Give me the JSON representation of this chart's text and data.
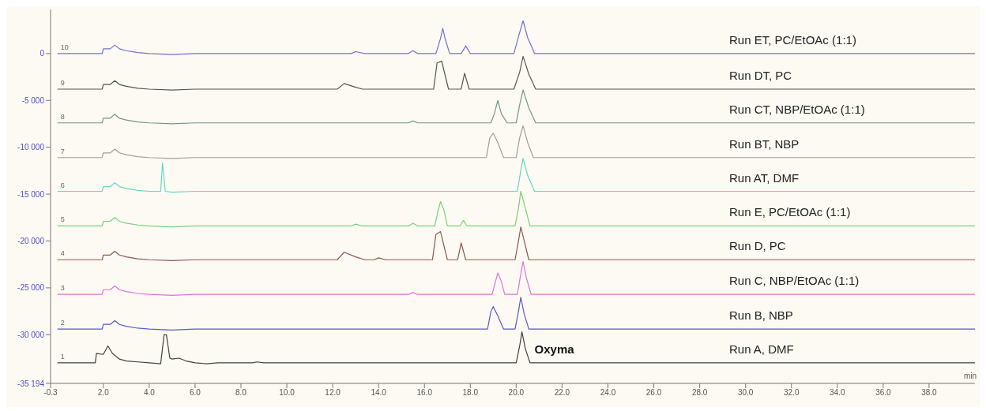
{
  "chart_data": {
    "type": "line",
    "xlabel": "min",
    "xlim": [
      -0.3,
      40
    ],
    "ylim": [
      -35194,
      4700
    ],
    "xticks": [
      -0.3,
      {
        "value": 2,
        "label": "2.0"
      },
      {
        "value": 4,
        "label": "4.0"
      },
      {
        "value": 6,
        "label": "6.0"
      },
      {
        "value": 8,
        "label": "8.0"
      },
      {
        "value": 10,
        "label": "10.0"
      },
      {
        "value": 12,
        "label": "12.0"
      },
      {
        "value": 14,
        "label": "14.0"
      },
      {
        "value": 16,
        "label": "16.0"
      },
      {
        "value": 18,
        "label": "18.0"
      },
      {
        "value": 20,
        "label": "20.0"
      },
      {
        "value": 22,
        "label": "22.0"
      },
      {
        "value": 24,
        "label": "24.0"
      },
      {
        "value": 26,
        "label": "26.0"
      },
      {
        "value": 28,
        "label": "28.0"
      },
      {
        "value": 30,
        "label": "30.0"
      },
      {
        "value": 32,
        "label": "32.0"
      },
      {
        "value": 34,
        "label": "34.0"
      },
      {
        "value": 36,
        "label": "36.0"
      },
      {
        "value": 38,
        "label": "38.0"
      }
    ],
    "yticks": [
      0,
      {
        "value": -5000,
        "label": "-5 000"
      },
      {
        "value": -10000,
        "label": "-10 000"
      },
      {
        "value": -15000,
        "label": "-15 000"
      },
      {
        "value": -20000,
        "label": "-20 000"
      },
      {
        "value": -25000,
        "label": "-25 000"
      },
      {
        "value": -30000,
        "label": "-30 000"
      },
      {
        "value": -35194,
        "label": "-35 194"
      }
    ],
    "marker": "none",
    "line_style": "solid",
    "series": [
      {
        "name": "Run ET, PC/EtOAc (1:1)",
        "color": "#7070d8",
        "x": [
          0,
          1.95,
          2.0,
          2.3,
          2.5,
          2.7,
          3.0,
          3.5,
          4.0,
          5.0,
          6.0,
          12.8,
          13.0,
          13.4,
          15.3,
          15.5,
          15.7,
          16.5,
          16.7,
          16.8,
          16.9,
          17.1,
          17.6,
          17.8,
          18.0,
          19.9,
          20.1,
          20.3,
          20.5,
          20.8,
          40
        ],
        "values": [
          0,
          0,
          500,
          500,
          900,
          500,
          300,
          100,
          0,
          -100,
          0,
          0,
          200,
          0,
          0,
          300,
          0,
          0,
          1600,
          2700,
          1600,
          0,
          0,
          800,
          0,
          0,
          1800,
          3500,
          1700,
          0,
          0
        ]
      },
      {
        "name": "Run DT, PC",
        "color": "#555555",
        "x": [
          0,
          1.95,
          2.0,
          2.3,
          2.5,
          2.7,
          3.0,
          3.5,
          4.0,
          5.0,
          6.0,
          12.2,
          12.5,
          13.0,
          13.3,
          16.4,
          16.55,
          16.75,
          17.05,
          17.6,
          17.75,
          17.95,
          19.9,
          20.15,
          20.3,
          20.55,
          20.85,
          40
        ],
        "values": [
          -3800,
          -3800,
          -3300,
          -3300,
          -2900,
          -3300,
          -3500,
          -3700,
          -3800,
          -3900,
          -3800,
          -3800,
          -3200,
          -3600,
          -3800,
          -3800,
          -1000,
          -800,
          -3800,
          -3800,
          -2100,
          -3800,
          -3800,
          -2000,
          -300,
          -2200,
          -3800,
          -3800
        ]
      },
      {
        "name": "Run CT, NBP/EtOAc (1:1)",
        "color": "#709888",
        "x": [
          0,
          1.95,
          2.0,
          2.3,
          2.5,
          2.7,
          3.0,
          3.5,
          4.0,
          5.0,
          6.0,
          15.3,
          15.5,
          15.7,
          18.9,
          19.05,
          19.2,
          19.35,
          19.6,
          20.0,
          20.15,
          20.3,
          20.55,
          20.85,
          40
        ],
        "values": [
          -7400,
          -7400,
          -6900,
          -6900,
          -6500,
          -6900,
          -7100,
          -7300,
          -7400,
          -7500,
          -7400,
          -7400,
          -7200,
          -7400,
          -7400,
          -6400,
          -5000,
          -6400,
          -7400,
          -7400,
          -5500,
          -3900,
          -5800,
          -7400,
          -7400
        ]
      },
      {
        "name": "Run BT, NBP",
        "color": "#a0a090",
        "x": [
          0,
          1.95,
          2.0,
          2.3,
          2.5,
          2.7,
          3.0,
          3.5,
          4.0,
          5.0,
          6.0,
          18.7,
          18.85,
          19.0,
          19.2,
          19.45,
          20.0,
          20.15,
          20.3,
          20.5,
          20.75,
          40
        ],
        "values": [
          -11100,
          -11100,
          -10600,
          -10600,
          -10200,
          -10600,
          -10800,
          -11000,
          -11100,
          -11200,
          -11100,
          -11100,
          -9000,
          -8500,
          -9500,
          -11100,
          -11100,
          -9000,
          -7700,
          -9500,
          -11100,
          -11100
        ]
      },
      {
        "name": "Run AT, DMF",
        "color": "#60d8c8",
        "x": [
          0,
          1.95,
          2.0,
          2.3,
          2.5,
          2.7,
          3.0,
          3.5,
          4.0,
          4.5,
          4.58,
          4.7,
          5.0,
          6.0,
          20.05,
          20.2,
          20.3,
          20.5,
          20.8,
          40
        ],
        "values": [
          -14700,
          -14700,
          -14200,
          -14200,
          -13800,
          -14200,
          -14400,
          -14600,
          -14700,
          -14700,
          -11700,
          -14700,
          -14800,
          -14700,
          -14700,
          -12500,
          -11200,
          -13000,
          -14700,
          -14700
        ]
      },
      {
        "name": "Run E, PC/EtOAc (1:1)",
        "color": "#78d078",
        "x": [
          0,
          1.95,
          2.0,
          2.3,
          2.5,
          2.7,
          3.0,
          3.5,
          4.0,
          5.0,
          6.0,
          12.8,
          13.0,
          13.3,
          15.3,
          15.5,
          15.7,
          16.45,
          16.6,
          16.7,
          16.85,
          17.0,
          17.55,
          17.7,
          17.85,
          19.95,
          20.1,
          20.2,
          20.4,
          20.6,
          40
        ],
        "values": [
          -18400,
          -18400,
          -17900,
          -17900,
          -17500,
          -17900,
          -18100,
          -18300,
          -18400,
          -18500,
          -18400,
          -18400,
          -18200,
          -18400,
          -18400,
          -18100,
          -18400,
          -18400,
          -16700,
          -15800,
          -16700,
          -18400,
          -18400,
          -17800,
          -18400,
          -18400,
          -16500,
          -14700,
          -16500,
          -18400,
          -18400
        ]
      },
      {
        "name": "Run D, PC",
        "color": "#8a5848",
        "x": [
          0,
          1.95,
          2.0,
          2.3,
          2.5,
          2.7,
          3.0,
          3.5,
          4.0,
          5.0,
          6.0,
          12.2,
          12.5,
          13.0,
          13.4,
          13.8,
          14.0,
          14.3,
          16.35,
          16.5,
          16.7,
          17.0,
          17.45,
          17.6,
          17.8,
          19.95,
          20.1,
          20.2,
          20.35,
          20.55,
          40
        ],
        "values": [
          -22000,
          -22000,
          -21500,
          -21500,
          -21100,
          -21500,
          -21700,
          -21900,
          -22000,
          -22100,
          -22000,
          -22000,
          -21200,
          -21700,
          -22000,
          -22000,
          -21800,
          -22000,
          -22000,
          -19300,
          -19000,
          -22000,
          -22000,
          -20200,
          -22000,
          -22000,
          -20000,
          -18500,
          -20000,
          -22000,
          -22000
        ]
      },
      {
        "name": "Run C, NBP/EtOAc (1:1)",
        "color": "#e070d8",
        "x": [
          0,
          1.95,
          2.0,
          2.3,
          2.5,
          2.7,
          3.0,
          3.5,
          4.0,
          5.0,
          6.0,
          15.3,
          15.5,
          15.7,
          18.95,
          19.1,
          19.2,
          19.35,
          19.5,
          20.05,
          20.2,
          20.3,
          20.45,
          20.65,
          40
        ],
        "values": [
          -25700,
          -25700,
          -25200,
          -25200,
          -24800,
          -25200,
          -25400,
          -25600,
          -25700,
          -25800,
          -25700,
          -25700,
          -25500,
          -25700,
          -25700,
          -24300,
          -23400,
          -24300,
          -25700,
          -25700,
          -23500,
          -22200,
          -24000,
          -25700,
          -25700
        ]
      },
      {
        "name": "Run B, NBP",
        "color": "#5858c8",
        "x": [
          0,
          1.95,
          2.0,
          2.3,
          2.5,
          2.7,
          3.0,
          3.5,
          4.0,
          5.0,
          6.0,
          18.75,
          18.9,
          19.0,
          19.2,
          19.45,
          19.95,
          20.1,
          20.2,
          20.35,
          20.55,
          40
        ],
        "values": [
          -29400,
          -29400,
          -28900,
          -28900,
          -28500,
          -28900,
          -29100,
          -29300,
          -29400,
          -29500,
          -29400,
          -29400,
          -27500,
          -27000,
          -28000,
          -29400,
          -29400,
          -27500,
          -26000,
          -27800,
          -29400,
          -29400
        ]
      },
      {
        "name": "Run A, DMF",
        "color": "#404040",
        "x": [
          0,
          1.65,
          1.7,
          2.0,
          2.2,
          2.4,
          2.7,
          3.0,
          3.5,
          4.0,
          4.5,
          4.65,
          4.75,
          4.9,
          5.0,
          5.3,
          5.6,
          6.0,
          6.5,
          7.0,
          8.5,
          8.7,
          9.0,
          20.0,
          20.15,
          20.25,
          20.4,
          20.6,
          40
        ],
        "values": [
          -33000,
          -33000,
          -32000,
          -32100,
          -31200,
          -32000,
          -32600,
          -32800,
          -32900,
          -33000,
          -33100,
          -30000,
          -30000,
          -32500,
          -32600,
          -32500,
          -32800,
          -33000,
          -33100,
          -33000,
          -33000,
          -32900,
          -33000,
          -33000,
          -31200,
          -29700,
          -31500,
          -33000,
          -33000
        ]
      }
    ],
    "annotations": [
      "10",
      "9",
      "8",
      "7",
      "6",
      "5",
      "4",
      "3",
      "2",
      "1",
      "Oxyma"
    ]
  }
}
